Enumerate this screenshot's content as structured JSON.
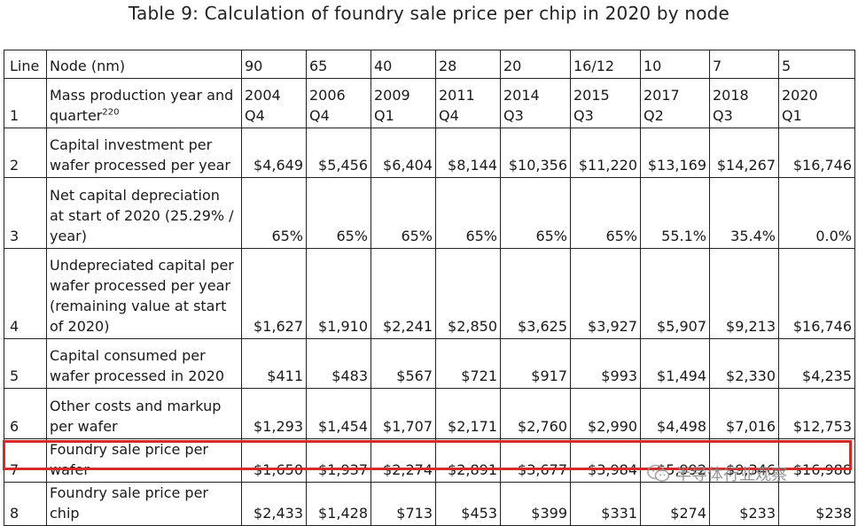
{
  "title": "Table 9: Calculation of foundry sale price per chip in 2020 by node",
  "header": {
    "line_label": "Line",
    "node_label": "Node (nm)",
    "nodes": [
      "90",
      "65",
      "40",
      "28",
      "20",
      "16/12",
      "10",
      "7",
      "5"
    ]
  },
  "rows": [
    {
      "line": "1",
      "label": "Mass production year and quarter",
      "label_sup": "220",
      "cells": [
        [
          "2004",
          "Q4"
        ],
        [
          "2006",
          "Q4"
        ],
        [
          "2009",
          "Q1"
        ],
        [
          "2011",
          "Q4"
        ],
        [
          "2014",
          "Q3"
        ],
        [
          "2015",
          "Q3"
        ],
        [
          "2017",
          "Q2"
        ],
        [
          "2018",
          "Q3"
        ],
        [
          "2020",
          "Q1"
        ]
      ]
    },
    {
      "line": "2",
      "label": "Capital investment per wafer processed per year",
      "values": [
        "$4,649",
        "$5,456",
        "$6,404",
        "$8,144",
        "$10,356",
        "$11,220",
        "$13,169",
        "$14,267",
        "$16,746"
      ]
    },
    {
      "line": "3",
      "label": "Net capital depreciation at start of 2020 (25.29% / year)",
      "values": [
        "65%",
        "65%",
        "65%",
        "65%",
        "65%",
        "65%",
        "55.1%",
        "35.4%",
        "0.0%"
      ]
    },
    {
      "line": "4",
      "label": "Undepreciated capital per wafer processed per year (remaining value at start of 2020)",
      "values": [
        "$1,627",
        "$1,910",
        "$2,241",
        "$2,850",
        "$3,625",
        "$3,927",
        "$5,907",
        "$9,213",
        "$16,746"
      ]
    },
    {
      "line": "5",
      "label": "Capital consumed per wafer processed in 2020",
      "values": [
        "$411",
        "$483",
        "$567",
        "$721",
        "$917",
        "$993",
        "$1,494",
        "$2,330",
        "$4,235"
      ]
    },
    {
      "line": "6",
      "label": "Other costs and markup per wafer",
      "values": [
        "$1,293",
        "$1,454",
        "$1,707",
        "$2,171",
        "$2,760",
        "$2,990",
        "$4,498",
        "$7,016",
        "$12,753"
      ]
    },
    {
      "line": "7",
      "label": "Foundry sale price per wafer",
      "values": [
        "$1,650",
        "$1,937",
        "$2,274",
        "$2,891",
        "$3,677",
        "$3,984",
        "$5,992",
        "$9,346",
        "$16,988"
      ],
      "highlighted": true
    },
    {
      "line": "8",
      "label": "Foundry sale price per chip",
      "values": [
        "$2,433",
        "$1,428",
        "$713",
        "$453",
        "$399",
        "$331",
        "$274",
        "$233",
        "$238"
      ]
    }
  ],
  "highlight_color": "#d42a2a",
  "watermark": {
    "text": "半导体行业观察",
    "icon": "wechat-icon"
  }
}
